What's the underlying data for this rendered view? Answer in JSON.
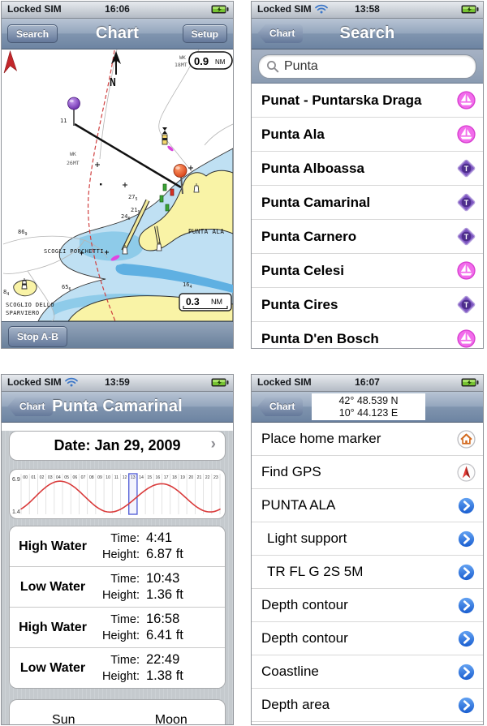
{
  "colors": {
    "nav_blue": "#6d84a2",
    "water_light": "#bfe0f3",
    "water_mid": "#8ecbe9",
    "land_yellow": "#f9f3a6",
    "marina_pink": "#f26ceb",
    "tide_station_purple": "#7e57c2",
    "disclosure_blue": "#2f76e0",
    "tide_curve_red": "#d93a3a"
  },
  "chart_panel": {
    "status": {
      "carrier": "Locked SIM",
      "time": "16:06"
    },
    "nav": {
      "back": "Search",
      "title": "Chart",
      "action": "Setup"
    },
    "map": {
      "north": "N",
      "wreck1_l1": "WK",
      "wreck1_l2": "18MT",
      "distance": {
        "value": "0.9",
        "unit": "NM"
      },
      "marker_a_depth": "11",
      "wreck2_l1": "WK",
      "wreck2_l2": "26MT",
      "depths": {
        "d1": {
          "m": "27",
          "s": "5"
        },
        "d2": {
          "m": "21",
          "s": "9"
        },
        "d3": {
          "m": "24",
          "s": "6"
        },
        "d4": {
          "m": "86",
          "s": "9"
        },
        "d5": {
          "m": "65",
          "s": "6"
        },
        "d6": {
          "m": "16",
          "s": "4"
        },
        "d7": {
          "m": "8",
          "s": "4"
        }
      },
      "scogli": "SCOGLI PORCHETTI",
      "punta_ala": "PUNTA ALA",
      "sparviero_l1": "SCOGLIO DELLO",
      "sparviero_l2": "SPARVIERO",
      "scale": {
        "value": "0.3",
        "unit": "NM"
      }
    },
    "toolbar": {
      "stop": "Stop A-B"
    }
  },
  "search_panel": {
    "status": {
      "carrier": "Locked SIM",
      "time": "13:58"
    },
    "nav": {
      "back": "Chart",
      "title": "Search"
    },
    "search": {
      "value": "Punta"
    },
    "results": [
      {
        "label": "Punat - Puntarska Draga",
        "icon": "marina"
      },
      {
        "label": "Punta Ala",
        "icon": "marina"
      },
      {
        "label": "Punta Alboassa",
        "icon": "tide-station"
      },
      {
        "label": "Punta Camarinal",
        "icon": "tide-station"
      },
      {
        "label": "Punta Carnero",
        "icon": "tide-station"
      },
      {
        "label": "Punta Celesi",
        "icon": "marina"
      },
      {
        "label": "Punta Cires",
        "icon": "tide-station"
      },
      {
        "label": "Punta D'en Bosch",
        "icon": "marina"
      }
    ]
  },
  "tide_panel": {
    "status": {
      "carrier": "Locked SIM",
      "time": "13:59"
    },
    "nav": {
      "back": "Chart",
      "title": "Punta Camarinal"
    },
    "date_row": {
      "label": "Date: Jan 29, 2009"
    },
    "chart_data": {
      "type": "line",
      "title": "Tide height curve for Jan 29, 2009",
      "y_top_label": "6.9",
      "y_bottom_label": "1.4",
      "ylim": [
        1.4,
        6.9
      ],
      "hours": [
        "00",
        "01",
        "02",
        "03",
        "04",
        "05",
        "06",
        "07",
        "08",
        "09",
        "10",
        "11",
        "12",
        "13",
        "14",
        "15",
        "16",
        "17",
        "18",
        "19",
        "20",
        "21",
        "22",
        "23"
      ],
      "hourly_heights_ft": [
        1.91,
        3.05,
        4.49,
        5.83,
        6.69,
        6.83,
        6.25,
        5.1,
        3.69,
        2.39,
        1.55,
        1.39,
        1.87,
        2.85,
        4.09,
        5.27,
        6.12,
        6.41,
        6.03,
        5.05,
        3.75,
        2.48,
        1.62,
        1.39
      ],
      "extremes": [
        {
          "t": -1.18,
          "v": 1.38
        },
        {
          "t": 4.68,
          "v": 6.87
        },
        {
          "t": 10.72,
          "v": 1.36
        },
        {
          "t": 16.97,
          "v": 6.41
        },
        {
          "t": 22.82,
          "v": 1.38
        },
        {
          "t": 28.75,
          "v": 6.6
        }
      ],
      "highlight_hour": 13,
      "line_color": "#d93a3a"
    },
    "events": [
      {
        "type": "High Water",
        "time": "4:41",
        "height": "6.87 ft"
      },
      {
        "type": "Low Water",
        "time": "10:43",
        "height": "1.36 ft"
      },
      {
        "type": "High Water",
        "time": "16:58",
        "height": "6.41 ft"
      },
      {
        "type": "Low Water",
        "time": "22:49",
        "height": "1.38 ft"
      }
    ],
    "labels": {
      "time": "Time:",
      "height": "Height:"
    },
    "footer": {
      "sun": "Sun",
      "moon": "Moon"
    }
  },
  "info_panel": {
    "status": {
      "carrier": "Locked SIM",
      "time": "16:07"
    },
    "nav": {
      "back": "Chart",
      "coord_lat": "42° 48.539 N",
      "coord_lon": "10° 44.123 E"
    },
    "items": [
      {
        "label": "Place home marker",
        "icon": "home"
      },
      {
        "label": "Find GPS",
        "icon": "gps"
      },
      {
        "label": "PUNTA ALA",
        "icon": "disclosure"
      },
      {
        "label": "Light support",
        "icon": "disclosure",
        "indent": true
      },
      {
        "label": "TR FL G 2S 5M",
        "icon": "disclosure",
        "indent": true
      },
      {
        "label": "Depth contour",
        "icon": "disclosure"
      },
      {
        "label": "Depth contour",
        "icon": "disclosure"
      },
      {
        "label": "Coastline",
        "icon": "disclosure"
      },
      {
        "label": "Depth area",
        "icon": "disclosure"
      }
    ]
  }
}
